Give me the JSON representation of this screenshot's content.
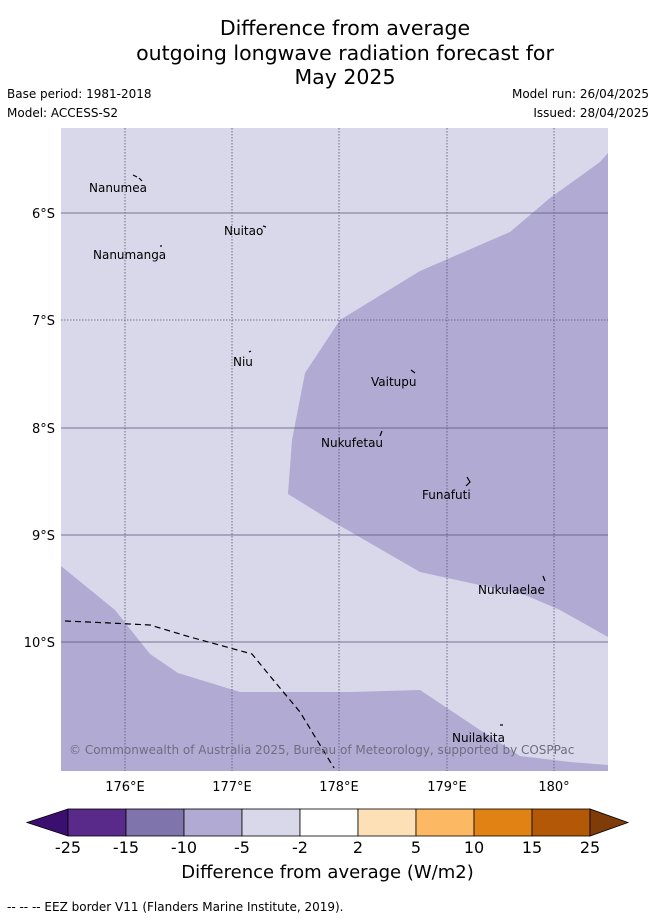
{
  "title": {
    "line1": "Difference from average",
    "line2": "outgoing longwave radiation forecast for",
    "line3": "May 2025"
  },
  "meta": {
    "base_period": "Base period: 1981-2018",
    "model": "Model: ACCESS-S2",
    "model_run": "Model run: 26/04/2025",
    "issued": "Issued: 28/04/2025"
  },
  "map": {
    "lat_ticks": [
      "6°S",
      "7°S",
      "8°S",
      "9°S",
      "10°S"
    ],
    "lon_ticks": [
      "176°E",
      "177°E",
      "178°E",
      "179°E",
      "180°"
    ],
    "places": [
      "Nanumea",
      "Nuitao",
      "Nanumanga",
      "Niu",
      "Vaitupu",
      "Nukufetau",
      "Funafuti",
      "Nukulaelae",
      "Nuilakita"
    ],
    "copyright": "© Commonwealth of Australia 2025, Bureau of Meteorology, supported by COSPPac",
    "colors": {
      "background_class": "#d8d8ea",
      "anomaly_class": "#b1abd3"
    }
  },
  "colorbar": {
    "ticks": [
      "-25",
      "-15",
      "-10",
      "-5",
      "-2",
      "2",
      "5",
      "10",
      "15",
      "25"
    ],
    "colors": [
      "#3b0f6f",
      "#5a2a8a",
      "#8074ad",
      "#b1abd3",
      "#d8d8ea",
      "#ffffff",
      "#fde0b5",
      "#fdb863",
      "#e08214",
      "#b35806",
      "#7f3b08"
    ],
    "label": "Difference from average (W/m2)"
  },
  "footer": "-- -- -- EEZ border V11 (Flanders Marine Institute, 2019)."
}
